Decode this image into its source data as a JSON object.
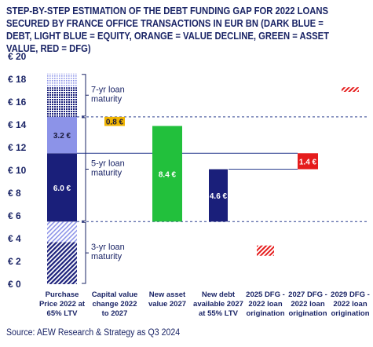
{
  "title": "STEP-BY-STEP ESTIMATION OF THE DEBT FUNDING GAP FOR 2022 LOANS SECURED BY FRANCE OFFICE TRANSACTIONS IN EUR BN (DARK BLUE = DEBT, LIGHT BLUE = EQUITY, ORANGE = VALUE DECLINE, GREEN = ASSET VALUE, RED = DFG)",
  "source": "Source: AEW Research & Strategy as Q3 2024",
  "colors": {
    "text": "#1a2466",
    "debt": "#1a1f7a",
    "equity": "#8c93e8",
    "value_decline": "#f0b400",
    "asset_value": "#22c03c",
    "dfg": "#e51c1c",
    "reference_line": "#2a3d8f",
    "grid": "#d9d9d9"
  },
  "chart_data": {
    "type": "bar",
    "subtype": "waterfall",
    "title": "STEP-BY-STEP ESTIMATION OF THE DEBT FUNDING GAP FOR 2022 LOANS SECURED BY FRANCE OFFICE TRANSACTIONS IN EUR BN (DARK BLUE = DEBT, LIGHT BLUE = EQUITY, ORANGE = VALUE DECLINE, GREEN = ASSET VALUE, RED = DFG)",
    "categories": [
      "Purchase Price 2022 at 65% LTV",
      "Capital value change 2022 to 2027",
      "New asset value 2027",
      "New debt available 2027 at 55% LTV",
      "2025 DFG - 2022 loan origination",
      "2027 DFG - 2022 loan origination",
      "2029 DFG - 2022 loan origination"
    ],
    "ylim": [
      0,
      20
    ],
    "yticks": [
      0,
      2,
      4,
      6,
      8,
      10,
      12,
      14,
      16,
      18,
      20
    ],
    "ytick_prefix": "€ ",
    "grid": false,
    "segments": [
      {
        "category": 0,
        "component": "debt",
        "maturity": "3-yr",
        "bottom": 0.0,
        "top": 3.7,
        "style": "hatched"
      },
      {
        "category": 0,
        "component": "equity",
        "maturity": "3-yr",
        "bottom": 3.7,
        "top": 5.5,
        "style": "hatched"
      },
      {
        "category": 0,
        "component": "debt",
        "maturity": "5-yr",
        "bottom": 5.5,
        "top": 11.5,
        "style": "solid",
        "label": "6.0 €"
      },
      {
        "category": 0,
        "component": "equity",
        "maturity": "5-yr",
        "bottom": 11.5,
        "top": 14.7,
        "style": "solid",
        "label": "3.2 €"
      },
      {
        "category": 0,
        "component": "debt",
        "maturity": "7-yr",
        "bottom": 14.7,
        "top": 17.3,
        "style": "dotted"
      },
      {
        "category": 0,
        "component": "equity",
        "maturity": "7-yr",
        "bottom": 17.3,
        "top": 18.5,
        "style": "dotted"
      },
      {
        "category": 1,
        "component": "value_decline",
        "bottom": 13.9,
        "top": 14.7,
        "style": "solid",
        "label": "0.8 €"
      },
      {
        "category": 2,
        "component": "asset_value",
        "bottom": 5.5,
        "top": 13.9,
        "style": "solid",
        "label": "8.4 €"
      },
      {
        "category": 3,
        "component": "debt",
        "bottom": 5.5,
        "top": 10.1,
        "style": "solid",
        "label": "4.6 €"
      },
      {
        "category": 4,
        "component": "dfg",
        "bottom": 2.5,
        "top": 3.4,
        "style": "hatched"
      },
      {
        "category": 5,
        "component": "dfg",
        "bottom": 10.1,
        "top": 11.5,
        "style": "solid",
        "label": "1.4 €"
      },
      {
        "category": 6,
        "component": "dfg",
        "bottom": 16.9,
        "top": 17.3,
        "style": "hatched"
      }
    ],
    "brackets": [
      {
        "label": [
          "7-yr loan",
          "maturity"
        ],
        "bottom": 14.7,
        "top": 18.5
      },
      {
        "label": [
          "5-yr loan",
          "maturity"
        ],
        "bottom": 5.5,
        "top": 14.7
      },
      {
        "label": [
          "3-yr loan",
          "maturity"
        ],
        "bottom": 0.0,
        "top": 5.5
      }
    ],
    "reference_lines": [
      {
        "y": 14.7,
        "style": "dashed"
      },
      {
        "y": 5.5,
        "style": "dashed"
      },
      {
        "y": 11.5,
        "style": "solid",
        "from_category": 0,
        "to_category": 5
      },
      {
        "y": 10.1,
        "style": "solid",
        "from_category": 3,
        "to_category": 5
      }
    ]
  }
}
